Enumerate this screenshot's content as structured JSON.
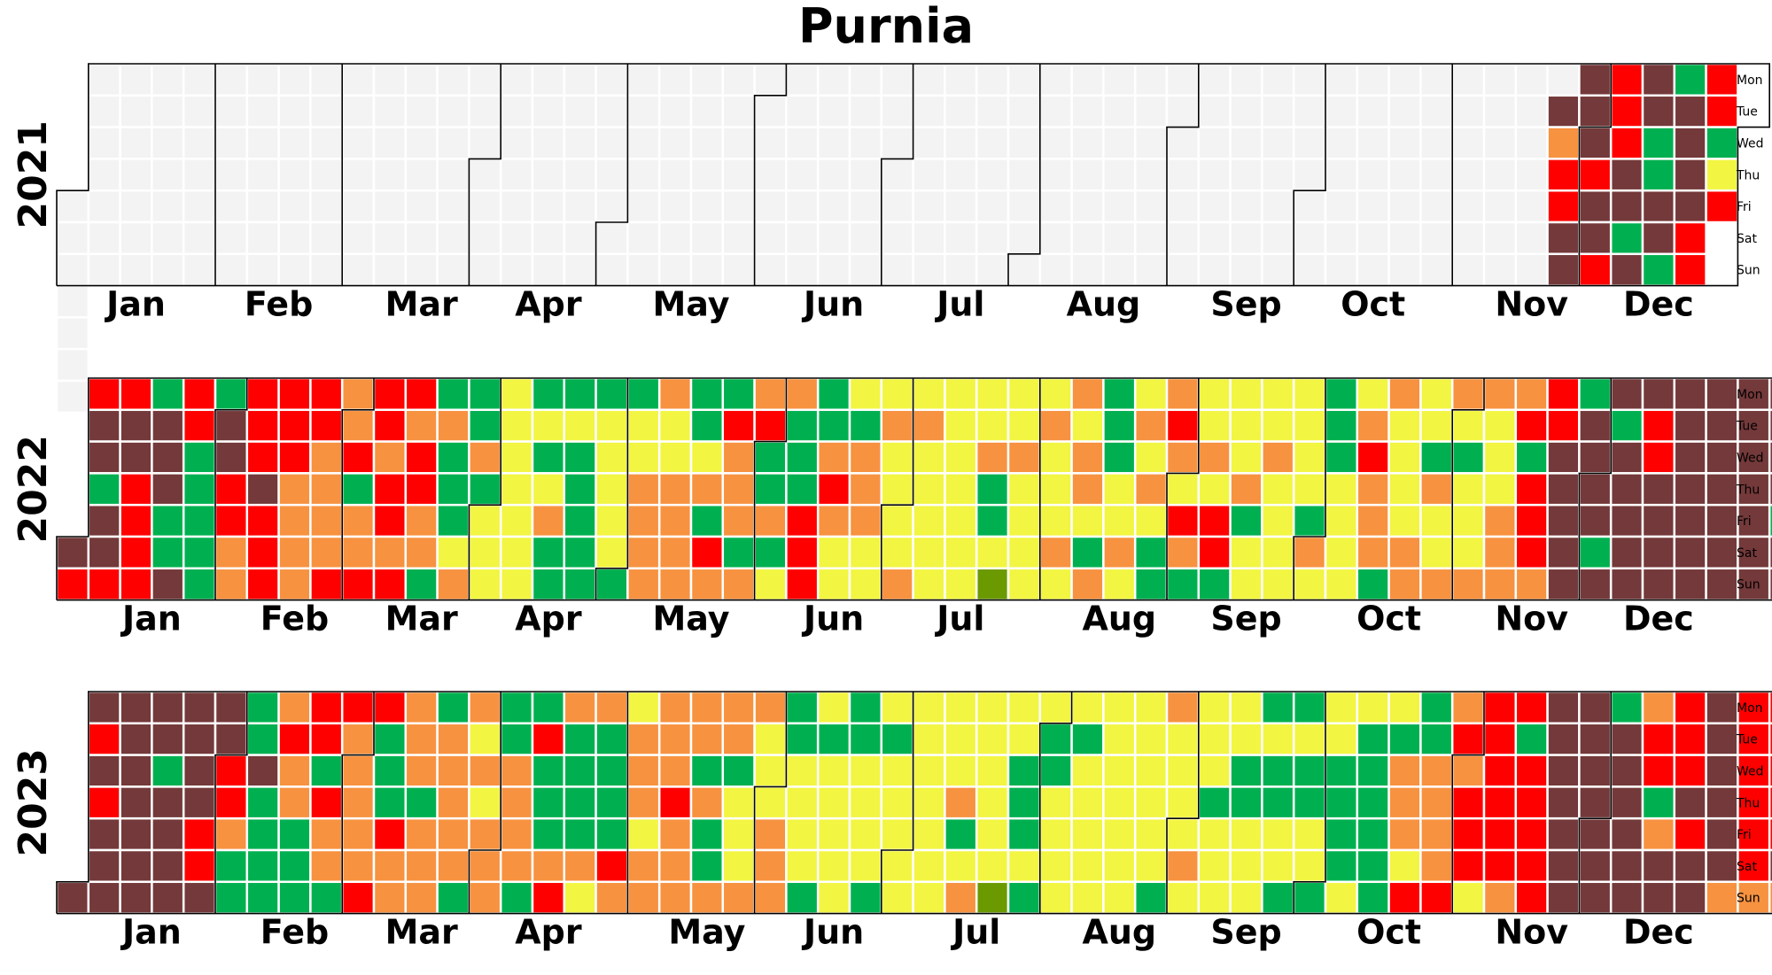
{
  "chart_data": {
    "type": "heatmap",
    "title": "Purnia",
    "weekday_labels": [
      "Mon",
      "Tue",
      "Wed",
      "Thu",
      "Fri",
      "Sat",
      "Sun"
    ],
    "month_labels": [
      "Jan",
      "Feb",
      "Mar",
      "Apr",
      "May",
      "Jun",
      "Jul",
      "Aug",
      "Sep",
      "Oct",
      "Nov",
      "Dec"
    ],
    "palette": {
      "N": "#f3f3f3",
      "G": "#00b050",
      "D": "#6a9a00",
      "Y": "#f2f542",
      "O": "#f79240",
      "R": "#ff0000",
      "M": "#74393a"
    },
    "years": [
      {
        "label": "2021",
        "start_row": 4,
        "weeks": [
          "NNNNNNN",
          "NNNNNNN",
          "NNNNNNN",
          "NNNNNNN",
          "NNNNNNN",
          "NNNNNNN",
          "NNNNNNN",
          "NNNNNNN",
          "NNNNNNN",
          "NNNNNNN",
          "NNNNNNN",
          "NNNNNNN",
          "NNNNNNN",
          "NNNNNNN",
          "NNNNNNN",
          "NNNNNNN",
          "NNNNNNN",
          "NNNNNNN",
          "NNNNNNN",
          "NNNNNNN",
          "NNNNNNN",
          "NNNNNNN",
          "NNNNNNN",
          "NNNNNNN",
          "NNNNNNN",
          "NNNNNNN",
          "NNNNNNN",
          "NNNNNNN",
          "NNNNNNN",
          "NNNNNNN",
          "NNNNNNN",
          "NNNNNNN",
          "NNNNNNN",
          "NNNNNNN",
          "NNNNNNN",
          "NNNNNNN",
          "NNNNNNN",
          "NNNNNNN",
          "NNNNNNN",
          "NNNNNNN",
          "NNNNNNN",
          "NNNNNNN",
          "NNNNNNN",
          "NNNNNNN",
          "NNNNNNN",
          "NNNNNNN",
          "NNNNNNN",
          "NMORRMM",
          "MMMRMMR",
          "RRRMMGM",
          "MMGGMMG",
          "GMMMMRR",
          "RRGYR"
        ]
      },
      {
        "label": "2022",
        "start_row": 5,
        "weeks": [
          "MR",
          "RMMGMMR",
          "RMMRRRR",
          "GMMMGGM",
          "RRGGGGG",
          "GMMRROO",
          "RRRMRRR",
          "RRROOOO",
          "RROOOOR",
          "OORGOOR",
          "RRORROR",
          "RORROOG",
          "GOGGGYO",
          "GGOGYYY",
          "YYYYYYY",
          "GYGYOGG",
          "GYGGGGG",
          "GYYYYYG",
          "GYYOOOO",
          "OYYOOOO",
          "GGYOGRO",
          "GROOOGO",
          "ORGGOGY",
          "OGGGRRR",
          "GGOROYY",
          "YGOOOYY",
          "YOYYYYO",
          "YOYYYYY",
          "YYYYYYY",
          "YYOGGYD",
          "YYOYYYY",
          "YOYYYOY",
          "OYOOYGO",
          "GGGYYOY",
          "YOYOYGG",
          "OROYROG",
          "YYOYRRG",
          "YYYOGYY",
          "YYOYYYY",
          "YYYYGOY",
          "GGGYYYY",
          "YOROOOG",
          "OYYYYOO",
          "YYGOYYO",
          "OYGYYYO",
          "OYYYOOO",
          "ORGRRRO",
          "RRMMMMM",
          "GMMMMGM",
          "MGMMMMM",
          "MRRMMMM",
          "MMMMMMM",
          "MMMMMMM",
          "MMMMMMM",
          "MMMMGMM",
          "MMGMMMM"
        ]
      },
      {
        "label": "2023",
        "start_row": 6,
        "weeks": [
          "M",
          "MRMRMMM",
          "MMMMMMM",
          "MMGMMMM",
          "MMMMRRM",
          "MMRROGG",
          "GGMGGGG",
          "OROOGGG",
          "RRGROOG",
          "ROOOOOR",
          "RGGGROO",
          "OOOGOOO",
          "GOOOOOG",
          "OYOYOOO",
          "GGOOOOG",
          "GRGGGOR",
          "OGGGGOY",
          "OGGGGRO",
          "YOOOYOO",
          "OOOROOO",
          "OOGOGGO",
          "OOGYYYO",
          "OYYYOOO",
          "GGYYYYG",
          "YGYYYYY",
          "GGYYYYG",
          "YGYYYYY",
          "YYYYYYY",
          "YYYOGYO",
          "YYYYYYD",
          "YYGGGYG",
          "YGGYYYY",
          "YGYYYYY",
          "YYYYYYY",
          "YYYYYYG",
          "OYYYYOY",
          "YYYGYYY",
          "YYGGYYY",
          "GYGGYYG",
          "GYGGYYG",
          "YYGGGGY",
          "YGGGGGG",
          "YGOOOYR",
          "GGOOOOR",
          "ORORRRY",
          "RRRRRRO",
          "RGRRRRR",
          "MMMMMMM",
          "MMMMMMM",
          "GMMMMMM",
          "ORRGOMM",
          "RRRMRMM",
          "MMMMMMO",
          "RRRRRRO",
          "RRRRRMO"
        ]
      }
    ]
  }
}
